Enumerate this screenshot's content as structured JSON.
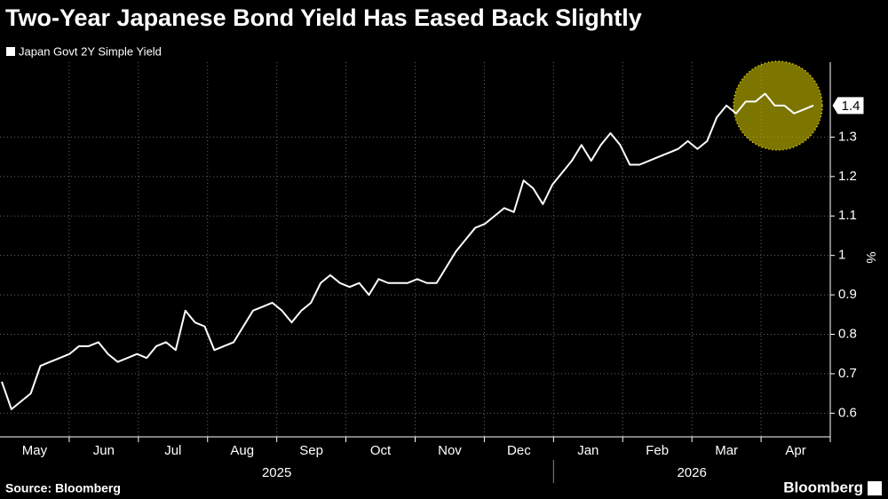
{
  "chart_data": {
    "type": "line",
    "title": "Two-Year Japanese Bond Yield Has Eased Back Slightly",
    "y_axis_label": "%",
    "source": "Source: Bloomberg",
    "brand": "Bloomberg",
    "series": [
      {
        "name": "Japan Govt 2Y Simple Yield",
        "color": "#ffffff",
        "values": [
          0.68,
          0.61,
          0.63,
          0.65,
          0.72,
          0.73,
          0.74,
          0.75,
          0.77,
          0.77,
          0.78,
          0.75,
          0.73,
          0.74,
          0.75,
          0.74,
          0.77,
          0.78,
          0.76,
          0.86,
          0.83,
          0.82,
          0.76,
          0.77,
          0.78,
          0.82,
          0.86,
          0.87,
          0.88,
          0.86,
          0.83,
          0.86,
          0.88,
          0.93,
          0.95,
          0.93,
          0.92,
          0.93,
          0.9,
          0.94,
          0.93,
          0.93,
          0.93,
          0.94,
          0.93,
          0.93,
          0.97,
          1.01,
          1.04,
          1.07,
          1.08,
          1.1,
          1.12,
          1.11,
          1.19,
          1.17,
          1.13,
          1.18,
          1.21,
          1.24,
          1.28,
          1.24,
          1.28,
          1.31,
          1.28,
          1.23,
          1.23,
          1.24,
          1.25,
          1.26,
          1.27,
          1.29,
          1.27,
          1.29,
          1.35,
          1.38,
          1.36,
          1.39,
          1.39,
          1.41,
          1.38,
          1.38,
          1.36,
          1.37,
          1.38
        ],
        "last_label": "1.4"
      }
    ],
    "xticks": [
      "May",
      "Jun",
      "Jul",
      "Aug",
      "Sep",
      "Oct",
      "Nov",
      "Dec",
      "Jan",
      "Feb",
      "Mar",
      "Apr"
    ],
    "years": [
      "2025",
      "2026"
    ],
    "ylim": [
      0.54,
      1.49
    ],
    "yticks": [
      0.6,
      0.7,
      0.8,
      0.9,
      1.0,
      1.1,
      1.2,
      1.3
    ],
    "grid": true
  }
}
